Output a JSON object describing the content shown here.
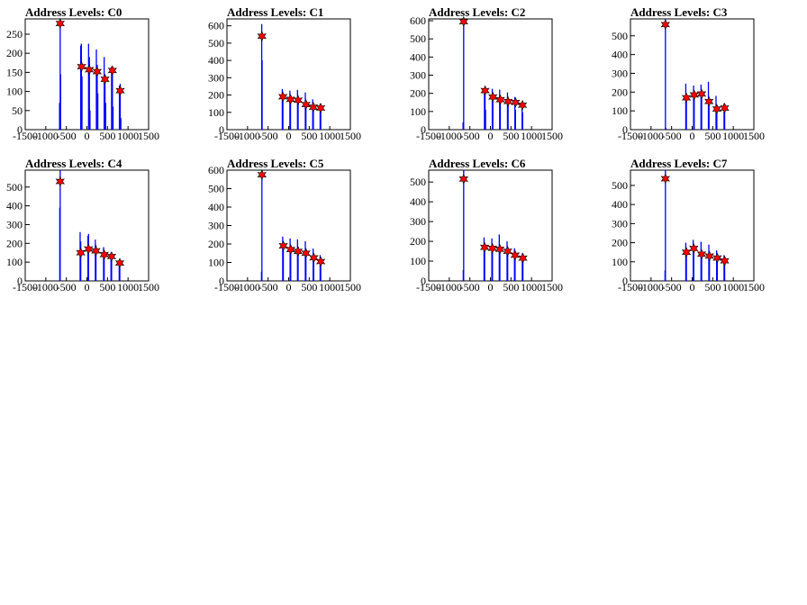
{
  "colors": {
    "histogram": "#0000ff",
    "marker": "#ff0000",
    "marker_outline": "#000000",
    "axis": "#000000"
  },
  "chart_data": [
    {
      "type": "bar",
      "title": "Address Levels: C0",
      "xlim": [
        -1500,
        1500
      ],
      "ylim": [
        0,
        290
      ],
      "yticks": [
        0,
        50,
        100,
        150,
        200,
        250
      ],
      "xticks": [
        -1500,
        -1000,
        -500,
        0,
        500,
        1000,
        1500
      ],
      "peaks": [
        {
          "x": -650,
          "y": 278
        },
        {
          "x": -130,
          "y": 165
        },
        {
          "x": 60,
          "y": 157
        },
        {
          "x": 250,
          "y": 152
        },
        {
          "x": 440,
          "y": 132
        },
        {
          "x": 620,
          "y": 155
        },
        {
          "x": 810,
          "y": 102
        }
      ],
      "bars": [
        {
          "x": -665,
          "y": 70
        },
        {
          "x": -650,
          "y": 290
        },
        {
          "x": -640,
          "y": 145
        },
        {
          "x": -150,
          "y": 220
        },
        {
          "x": -135,
          "y": 225
        },
        {
          "x": -120,
          "y": 140
        },
        {
          "x": 40,
          "y": 225
        },
        {
          "x": 60,
          "y": 190
        },
        {
          "x": 75,
          "y": 50
        },
        {
          "x": 230,
          "y": 210
        },
        {
          "x": 250,
          "y": 170
        },
        {
          "x": 265,
          "y": 95
        },
        {
          "x": 420,
          "y": 190
        },
        {
          "x": 440,
          "y": 140
        },
        {
          "x": 455,
          "y": 70
        },
        {
          "x": 600,
          "y": 165
        },
        {
          "x": 620,
          "y": 160
        },
        {
          "x": 635,
          "y": 60
        },
        {
          "x": 790,
          "y": 115
        },
        {
          "x": 810,
          "y": 120
        },
        {
          "x": 825,
          "y": 30
        }
      ]
    },
    {
      "type": "bar",
      "title": "Address Levels: C1",
      "xlim": [
        -1500,
        1500
      ],
      "ylim": [
        0,
        640
      ],
      "yticks": [
        0,
        100,
        200,
        300,
        400,
        500,
        600
      ],
      "xticks": [
        -1500,
        -1000,
        -500,
        0,
        500,
        1000,
        1500
      ],
      "peaks": [
        {
          "x": -650,
          "y": 540
        },
        {
          "x": -140,
          "y": 190
        },
        {
          "x": 45,
          "y": 175
        },
        {
          "x": 230,
          "y": 170
        },
        {
          "x": 420,
          "y": 145
        },
        {
          "x": 600,
          "y": 130
        },
        {
          "x": 780,
          "y": 125
        }
      ],
      "bars": [
        {
          "x": -655,
          "y": 610
        },
        {
          "x": -645,
          "y": 400
        },
        {
          "x": -155,
          "y": 235
        },
        {
          "x": -140,
          "y": 210
        },
        {
          "x": 30,
          "y": 225
        },
        {
          "x": 45,
          "y": 200
        },
        {
          "x": 215,
          "y": 230
        },
        {
          "x": 230,
          "y": 190
        },
        {
          "x": 405,
          "y": 215
        },
        {
          "x": 420,
          "y": 160
        },
        {
          "x": 585,
          "y": 175
        },
        {
          "x": 600,
          "y": 140
        },
        {
          "x": 765,
          "y": 150
        },
        {
          "x": 780,
          "y": 130
        }
      ]
    },
    {
      "type": "bar",
      "title": "Address Levels: C2",
      "xlim": [
        -1500,
        1500
      ],
      "ylim": [
        0,
        610
      ],
      "yticks": [
        0,
        100,
        200,
        300,
        400,
        500,
        600
      ],
      "xticks": [
        -1500,
        -1000,
        -500,
        0,
        500,
        1000,
        1500
      ],
      "peaks": [
        {
          "x": -650,
          "y": 595
        },
        {
          "x": -130,
          "y": 215
        },
        {
          "x": 60,
          "y": 180
        },
        {
          "x": 240,
          "y": 165
        },
        {
          "x": 430,
          "y": 155
        },
        {
          "x": 610,
          "y": 150
        },
        {
          "x": 780,
          "y": 135
        }
      ],
      "bars": [
        {
          "x": -665,
          "y": 40
        },
        {
          "x": -650,
          "y": 610
        },
        {
          "x": -145,
          "y": 220
        },
        {
          "x": -130,
          "y": 190
        },
        {
          "x": -118,
          "y": 110
        },
        {
          "x": 45,
          "y": 225
        },
        {
          "x": 60,
          "y": 180
        },
        {
          "x": 225,
          "y": 220
        },
        {
          "x": 240,
          "y": 170
        },
        {
          "x": 415,
          "y": 205
        },
        {
          "x": 430,
          "y": 155
        },
        {
          "x": 595,
          "y": 180
        },
        {
          "x": 610,
          "y": 110
        },
        {
          "x": 770,
          "y": 150
        },
        {
          "x": 785,
          "y": 95
        }
      ]
    },
    {
      "type": "bar",
      "title": "Address Levels: C3",
      "xlim": [
        -1500,
        1500
      ],
      "ylim": [
        0,
        590
      ],
      "yticks": [
        0,
        100,
        200,
        300,
        400,
        500
      ],
      "xticks": [
        -1500,
        -1000,
        -500,
        0,
        500,
        1000,
        1500
      ],
      "peaks": [
        {
          "x": -650,
          "y": 560
        },
        {
          "x": -140,
          "y": 170
        },
        {
          "x": 50,
          "y": 185
        },
        {
          "x": 230,
          "y": 190
        },
        {
          "x": 410,
          "y": 150
        },
        {
          "x": 600,
          "y": 110
        },
        {
          "x": 790,
          "y": 115
        }
      ],
      "bars": [
        {
          "x": -650,
          "y": 590
        },
        {
          "x": -640,
          "y": 10
        },
        {
          "x": -155,
          "y": 245
        },
        {
          "x": -140,
          "y": 180
        },
        {
          "x": 35,
          "y": 235
        },
        {
          "x": 50,
          "y": 195
        },
        {
          "x": 215,
          "y": 240
        },
        {
          "x": 230,
          "y": 200
        },
        {
          "x": 395,
          "y": 255
        },
        {
          "x": 410,
          "y": 160
        },
        {
          "x": 580,
          "y": 180
        },
        {
          "x": 600,
          "y": 120
        },
        {
          "x": 775,
          "y": 140
        },
        {
          "x": 790,
          "y": 125
        }
      ]
    },
    {
      "type": "bar",
      "title": "Address Levels: C4",
      "xlim": [
        -1500,
        1500
      ],
      "ylim": [
        0,
        590
      ],
      "yticks": [
        0,
        100,
        200,
        300,
        400,
        500
      ],
      "xticks": [
        -1500,
        -1000,
        -500,
        0,
        500,
        1000,
        1500
      ],
      "peaks": [
        {
          "x": -650,
          "y": 530
        },
        {
          "x": -150,
          "y": 150
        },
        {
          "x": 40,
          "y": 170
        },
        {
          "x": 220,
          "y": 160
        },
        {
          "x": 420,
          "y": 140
        },
        {
          "x": 600,
          "y": 130
        },
        {
          "x": 800,
          "y": 95
        }
      ],
      "bars": [
        {
          "x": -660,
          "y": 390
        },
        {
          "x": -650,
          "y": 590
        },
        {
          "x": -165,
          "y": 260
        },
        {
          "x": -150,
          "y": 210
        },
        {
          "x": 25,
          "y": 240
        },
        {
          "x": 40,
          "y": 250
        },
        {
          "x": 205,
          "y": 220
        },
        {
          "x": 220,
          "y": 190
        },
        {
          "x": 405,
          "y": 180
        },
        {
          "x": 420,
          "y": 160
        },
        {
          "x": 585,
          "y": 150
        },
        {
          "x": 600,
          "y": 140
        },
        {
          "x": 785,
          "y": 110
        },
        {
          "x": 800,
          "y": 70
        }
      ]
    },
    {
      "type": "bar",
      "title": "Address Levels: C5",
      "xlim": [
        -1500,
        1500
      ],
      "ylim": [
        0,
        600
      ],
      "yticks": [
        0,
        100,
        200,
        300,
        400,
        500,
        600
      ],
      "xticks": [
        -1500,
        -1000,
        -500,
        0,
        500,
        1000,
        1500
      ],
      "peaks": [
        {
          "x": -650,
          "y": 575
        },
        {
          "x": -130,
          "y": 190
        },
        {
          "x": 50,
          "y": 170
        },
        {
          "x": 230,
          "y": 160
        },
        {
          "x": 420,
          "y": 150
        },
        {
          "x": 610,
          "y": 125
        },
        {
          "x": 780,
          "y": 105
        }
      ],
      "bars": [
        {
          "x": -660,
          "y": 50
        },
        {
          "x": -650,
          "y": 600
        },
        {
          "x": -145,
          "y": 240
        },
        {
          "x": -130,
          "y": 200
        },
        {
          "x": 35,
          "y": 230
        },
        {
          "x": 50,
          "y": 190
        },
        {
          "x": 215,
          "y": 225
        },
        {
          "x": 230,
          "y": 185
        },
        {
          "x": 405,
          "y": 215
        },
        {
          "x": 420,
          "y": 170
        },
        {
          "x": 595,
          "y": 175
        },
        {
          "x": 610,
          "y": 130
        },
        {
          "x": 765,
          "y": 140
        },
        {
          "x": 780,
          "y": 110
        }
      ]
    },
    {
      "type": "bar",
      "title": "Address Levels: C6",
      "xlim": [
        -1500,
        1500
      ],
      "ylim": [
        0,
        560
      ],
      "yticks": [
        0,
        100,
        200,
        300,
        400,
        500
      ],
      "xticks": [
        -1500,
        -1000,
        -500,
        0,
        500,
        1000,
        1500
      ],
      "peaks": [
        {
          "x": -650,
          "y": 515
        },
        {
          "x": -140,
          "y": 170
        },
        {
          "x": 50,
          "y": 165
        },
        {
          "x": 230,
          "y": 160
        },
        {
          "x": 420,
          "y": 150
        },
        {
          "x": 600,
          "y": 130
        },
        {
          "x": 790,
          "y": 115
        }
      ],
      "bars": [
        {
          "x": -660,
          "y": 55
        },
        {
          "x": -650,
          "y": 560
        },
        {
          "x": -155,
          "y": 220
        },
        {
          "x": -140,
          "y": 175
        },
        {
          "x": 35,
          "y": 215
        },
        {
          "x": 50,
          "y": 180
        },
        {
          "x": 215,
          "y": 235
        },
        {
          "x": 230,
          "y": 170
        },
        {
          "x": 405,
          "y": 200
        },
        {
          "x": 420,
          "y": 160
        },
        {
          "x": 585,
          "y": 165
        },
        {
          "x": 600,
          "y": 135
        },
        {
          "x": 775,
          "y": 140
        },
        {
          "x": 790,
          "y": 120
        }
      ]
    },
    {
      "type": "bar",
      "title": "Address Levels: C7",
      "xlim": [
        -1500,
        1500
      ],
      "ylim": [
        0,
        580
      ],
      "yticks": [
        0,
        100,
        200,
        300,
        400,
        500
      ],
      "xticks": [
        -1500,
        -1000,
        -500,
        0,
        500,
        1000,
        1500
      ],
      "peaks": [
        {
          "x": -650,
          "y": 535
        },
        {
          "x": -140,
          "y": 150
        },
        {
          "x": 40,
          "y": 170
        },
        {
          "x": 230,
          "y": 140
        },
        {
          "x": 420,
          "y": 130
        },
        {
          "x": 610,
          "y": 120
        },
        {
          "x": 790,
          "y": 105
        }
      ],
      "bars": [
        {
          "x": -660,
          "y": 55
        },
        {
          "x": -650,
          "y": 580
        },
        {
          "x": -155,
          "y": 200
        },
        {
          "x": -140,
          "y": 160
        },
        {
          "x": 25,
          "y": 215
        },
        {
          "x": 40,
          "y": 180
        },
        {
          "x": 215,
          "y": 205
        },
        {
          "x": 230,
          "y": 150
        },
        {
          "x": 405,
          "y": 190
        },
        {
          "x": 420,
          "y": 140
        },
        {
          "x": 595,
          "y": 160
        },
        {
          "x": 610,
          "y": 125
        },
        {
          "x": 775,
          "y": 135
        },
        {
          "x": 790,
          "y": 110
        }
      ]
    }
  ]
}
